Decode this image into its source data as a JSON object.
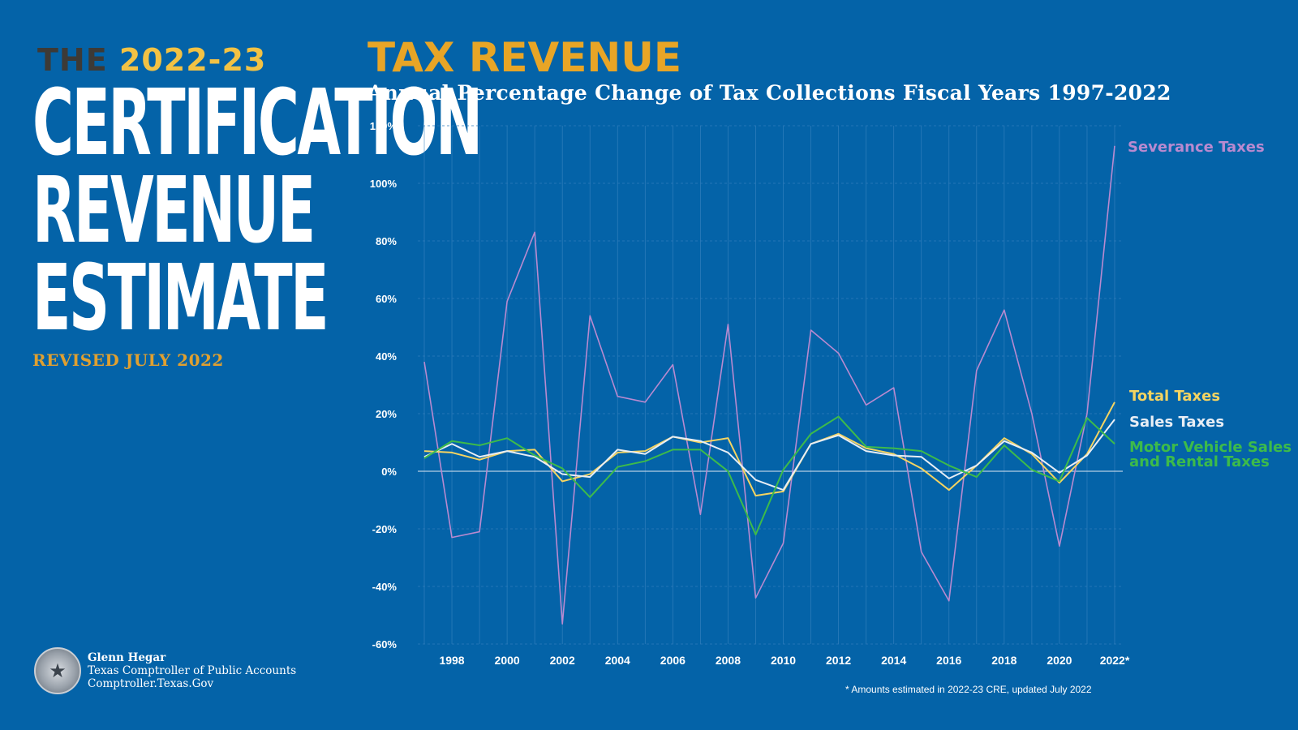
{
  "branding": {
    "the_word": "THE",
    "years": "2022-23",
    "title_lines": [
      "CERTIFICATION",
      "REVENUE",
      "ESTIMATE"
    ],
    "revised": "REVISED JULY 2022",
    "seal_icon": "star-seal-icon",
    "author_name": "Glenn Hegar",
    "author_title": "Texas Comptroller of Public Accounts",
    "author_site": "Comptroller.Texas.Gov"
  },
  "footnote": "* Amounts estimated in 2022-23 CRE, updated July 2022",
  "colors": {
    "background": "#0463a8",
    "severance": "#b98ad0",
    "total": "#f5d461",
    "sales": "#e8eef5",
    "motor": "#3dbb4a",
    "title": "#e8a526"
  },
  "chart_data": {
    "type": "line",
    "title": "TAX REVENUE",
    "subtitle": "Annual Percentage Change of Tax Collections Fiscal Years 1997-2022",
    "x": [
      1997,
      1998,
      1999,
      2000,
      2001,
      2002,
      2003,
      2004,
      2005,
      2006,
      2007,
      2008,
      2009,
      2010,
      2011,
      2012,
      2013,
      2014,
      2015,
      2016,
      2017,
      2018,
      2019,
      2020,
      2021,
      2022
    ],
    "x_tick_labels": [
      "1998",
      "2000",
      "2002",
      "2004",
      "2006",
      "2008",
      "2010",
      "2012",
      "2014",
      "2016",
      "2018",
      "2020",
      "2022*"
    ],
    "x_tick_values": [
      1998,
      2000,
      2002,
      2004,
      2006,
      2008,
      2010,
      2012,
      2014,
      2016,
      2018,
      2020,
      2022
    ],
    "ylim": [
      -60,
      120
    ],
    "y_tick_values": [
      -60,
      -40,
      -20,
      0,
      20,
      40,
      60,
      80,
      100,
      120
    ],
    "y_tick_labels": [
      "-60%",
      "-40%",
      "-20%",
      "0%",
      "20%",
      "40%",
      "60%",
      "80%",
      "100%",
      "120%"
    ],
    "grid": true,
    "series": [
      {
        "name": "Severance Taxes",
        "label_lines": [
          "Severance Taxes"
        ],
        "color_key": "severance",
        "values": [
          38,
          -23,
          -21,
          59,
          83,
          -53,
          54,
          26,
          24,
          37,
          -15,
          51,
          -44,
          -25,
          49,
          41,
          23,
          29,
          -28,
          -45,
          35,
          56,
          20,
          -26,
          20,
          113
        ]
      },
      {
        "name": "Total Taxes",
        "label_lines": [
          "Total Taxes"
        ],
        "color_key": "total",
        "values": [
          7,
          6.5,
          4,
          7,
          7.5,
          -3.5,
          -1,
          6.5,
          7,
          12,
          10,
          11.5,
          -8.5,
          -7,
          9.5,
          13,
          8,
          6,
          1,
          -6.5,
          2,
          11.5,
          6,
          -4,
          6,
          24
        ]
      },
      {
        "name": "Sales Taxes",
        "label_lines": [
          "Sales Taxes"
        ],
        "color_key": "sales",
        "values": [
          5,
          9.5,
          5,
          7,
          5,
          -1,
          -2,
          7.5,
          6,
          12,
          10.5,
          6.5,
          -3,
          -6.5,
          9.5,
          12.5,
          7,
          5.5,
          5,
          -2.5,
          2,
          10.5,
          6.5,
          -0.5,
          5.5,
          18
        ]
      },
      {
        "name": "Motor Vehicle Sales and Rental Taxes",
        "label_lines": [
          "Motor Vehicle Sales",
          "and Rental Taxes"
        ],
        "color_key": "motor",
        "values": [
          4.5,
          10.5,
          9,
          11.5,
          5.5,
          1,
          -9,
          1.5,
          3.5,
          7.5,
          7.5,
          0,
          -22,
          0.5,
          13,
          19,
          8.5,
          8,
          7,
          2,
          -2,
          9,
          0.5,
          -3.5,
          18.5,
          9.5
        ]
      }
    ]
  }
}
